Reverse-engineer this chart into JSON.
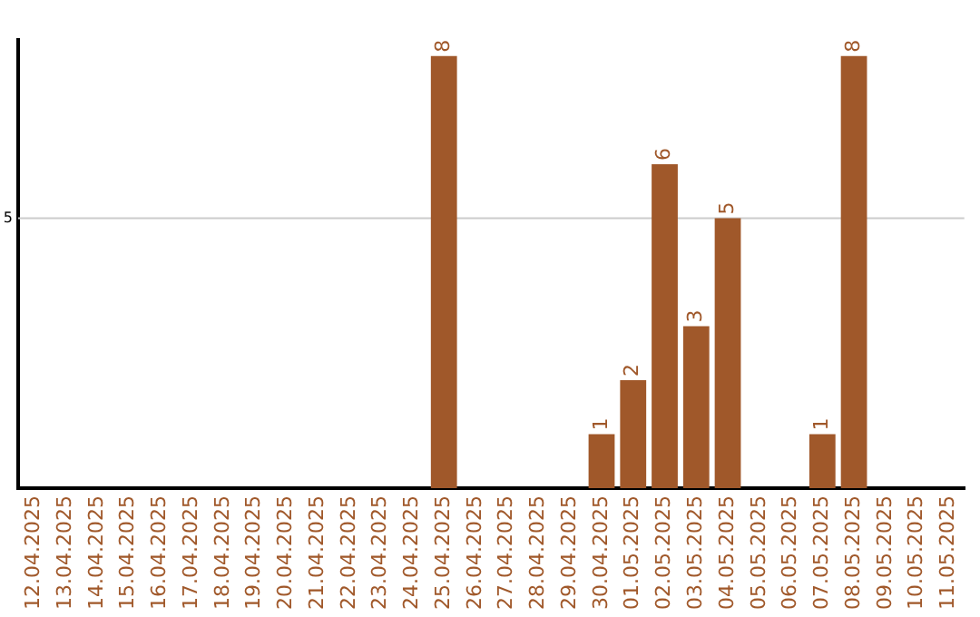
{
  "chart_data": {
    "type": "bar",
    "categories": [
      "12.04.2025",
      "13.04.2025",
      "14.04.2025",
      "15.04.2025",
      "16.04.2025",
      "17.04.2025",
      "18.04.2025",
      "19.04.2025",
      "20.04.2025",
      "21.04.2025",
      "22.04.2025",
      "23.04.2025",
      "24.04.2025",
      "25.04.2025",
      "26.04.2025",
      "27.04.2025",
      "28.04.2025",
      "29.04.2025",
      "30.04.2025",
      "01.05.2025",
      "02.05.2025",
      "03.05.2025",
      "04.05.2025",
      "05.05.2025",
      "06.05.2025",
      "07.05.2025",
      "08.05.2025",
      "09.05.2025",
      "10.05.2025",
      "11.05.2025"
    ],
    "values": [
      null,
      null,
      null,
      null,
      null,
      null,
      null,
      null,
      null,
      null,
      null,
      null,
      null,
      8,
      null,
      null,
      null,
      null,
      1,
      2,
      6,
      3,
      5,
      null,
      null,
      1,
      8,
      null,
      null,
      null
    ],
    "data_labels": true,
    "color": "#a0582a",
    "ylim": [
      0,
      8.3
    ],
    "ref_lines": [
      {
        "axis": "y",
        "value": 5,
        "label": "5",
        "color": "#cccccc"
      }
    ],
    "legend": false
  }
}
